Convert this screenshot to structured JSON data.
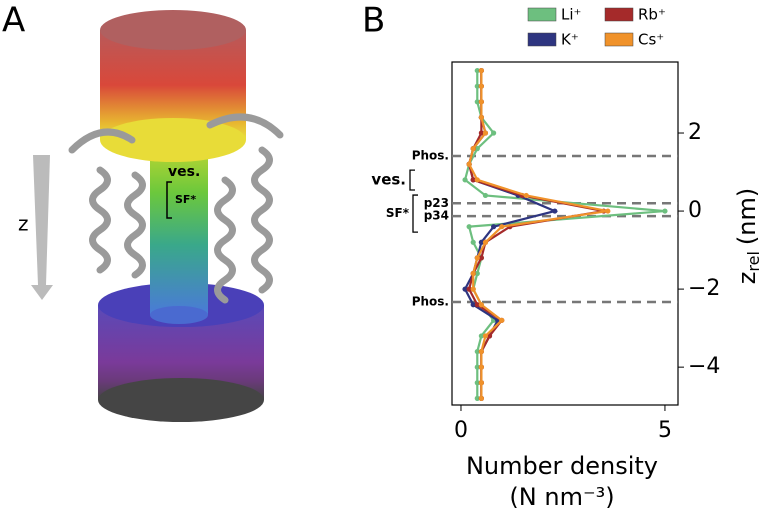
{
  "panel_a": {
    "letter": "A",
    "axis": "z",
    "labels": [
      "ves.",
      "SF*"
    ]
  },
  "chart_data": {
    "type": "line",
    "letter": "B",
    "x_label": [
      "Number density",
      "(N nm⁻³)"
    ],
    "y_label": {
      "main": "z",
      "sub": "rel",
      "unit": "(nm)"
    },
    "xlim": [
      -0.22,
      5.32
    ],
    "xticks": [
      0,
      5
    ],
    "ylim": [
      -4.97,
      3.82
    ],
    "yticks": [
      {
        "value": 2,
        "label": "2"
      },
      {
        "value": 0,
        "label": "0"
      },
      {
        "value": -2,
        "label": "−2"
      },
      {
        "value": -4,
        "label": "−4"
      }
    ],
    "z": [
      3.6,
      3.2,
      2.8,
      2.4,
      2.0,
      1.6,
      1.2,
      0.8,
      0.4,
      0.0,
      -0.4,
      -0.8,
      -1.2,
      -1.6,
      -2.0,
      -2.4,
      -2.8,
      -3.2,
      -3.6,
      -4.0,
      -4.4,
      -4.8
    ],
    "series": [
      {
        "name": "Li⁺",
        "color": "#6dbf7f",
        "values": [
          0.4,
          0.4,
          0.4,
          0.5,
          0.8,
          0.4,
          0.2,
          0.1,
          0.6,
          5.0,
          0.2,
          0.3,
          0.5,
          0.4,
          0.3,
          0.5,
          0.8,
          0.5,
          0.4,
          0.4,
          0.4,
          0.4
        ]
      },
      {
        "name": "K⁺",
        "color": "#2e3580",
        "values": [
          0.5,
          0.5,
          0.5,
          0.5,
          0.6,
          0.3,
          0.2,
          0.3,
          1.4,
          2.3,
          0.8,
          0.5,
          0.4,
          0.3,
          0.1,
          0.3,
          0.9,
          0.7,
          0.5,
          0.5,
          0.5,
          0.5
        ]
      },
      {
        "name": "Rb⁺",
        "color": "#a52a2a",
        "values": [
          0.5,
          0.5,
          0.5,
          0.5,
          0.5,
          0.3,
          0.2,
          0.3,
          1.5,
          3.5,
          1.2,
          0.6,
          0.5,
          0.3,
          0.2,
          0.4,
          1.0,
          0.7,
          0.5,
          0.5,
          0.5,
          0.5
        ]
      },
      {
        "name": "Cs⁺",
        "color": "#f0922a",
        "values": [
          0.5,
          0.5,
          0.5,
          0.5,
          0.6,
          0.3,
          0.2,
          0.4,
          1.6,
          3.6,
          1.0,
          0.6,
          0.4,
          0.3,
          0.3,
          0.5,
          1.0,
          0.6,
          0.5,
          0.5,
          0.5,
          0.5
        ]
      }
    ],
    "dashed_lines": [
      {
        "z": 1.41,
        "label": "Phos."
      },
      {
        "z": 0.2,
        "label": "p23"
      },
      {
        "z": -0.13,
        "label": "p34"
      },
      {
        "z": -2.33,
        "label": "Phos."
      }
    ],
    "brackets": [
      {
        "label": "ves.",
        "z": [
          1.05,
          0.54
        ]
      },
      {
        "label": "SF*",
        "z": [
          0.41,
          -0.54
        ]
      }
    ]
  }
}
